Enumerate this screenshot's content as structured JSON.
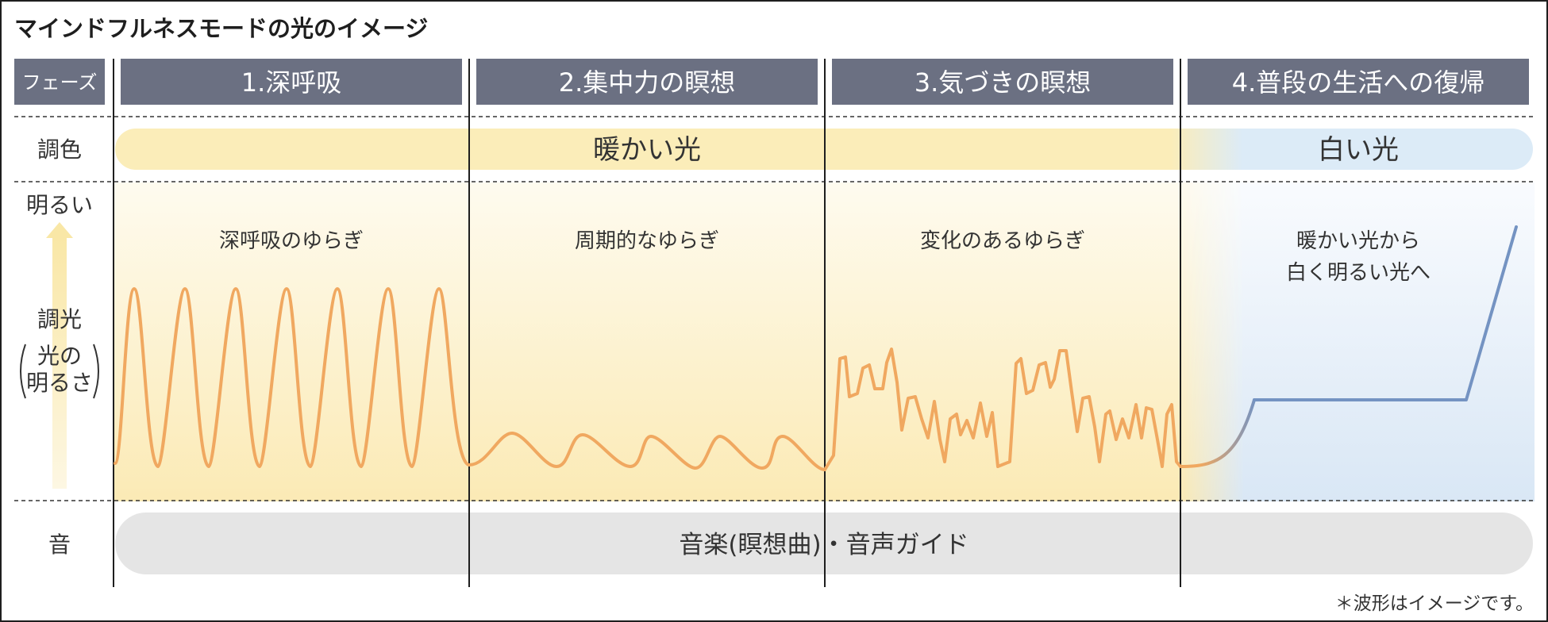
{
  "title": "マインドフルネスモードの光のイメージ",
  "phase_label": "フェーズ",
  "phases": [
    "1.深呼吸",
    "2.集中力の瞑想",
    "3.気づきの瞑想",
    "4.普段の生活への復帰"
  ],
  "color_row": {
    "label": "調色",
    "warm": "暖かい光",
    "white": "白い光"
  },
  "dimming_row": {
    "bright_label": "明るい",
    "label": "調光",
    "sub_label_line1": "光の",
    "sub_label_line2": "明るさ",
    "segment_captions": [
      [
        "深呼吸のゆらぎ"
      ],
      [
        "周期的なゆらぎ"
      ],
      [
        "変化のあるゆらぎ"
      ],
      [
        "暖かい光から",
        "白く明るい光へ"
      ]
    ]
  },
  "sound_row": {
    "label": "音",
    "value": "音楽(瞑想曲)・音声ガイド"
  },
  "footnote": "＊波形はイメージです。",
  "colors": {
    "header_bg": "#6b7082",
    "warm": "#fbedb9",
    "white_light": "#dcebf7",
    "wave_warm": "#f0a860",
    "wave_white": "#7493c2",
    "sound_bg": "#e5e5e5"
  }
}
